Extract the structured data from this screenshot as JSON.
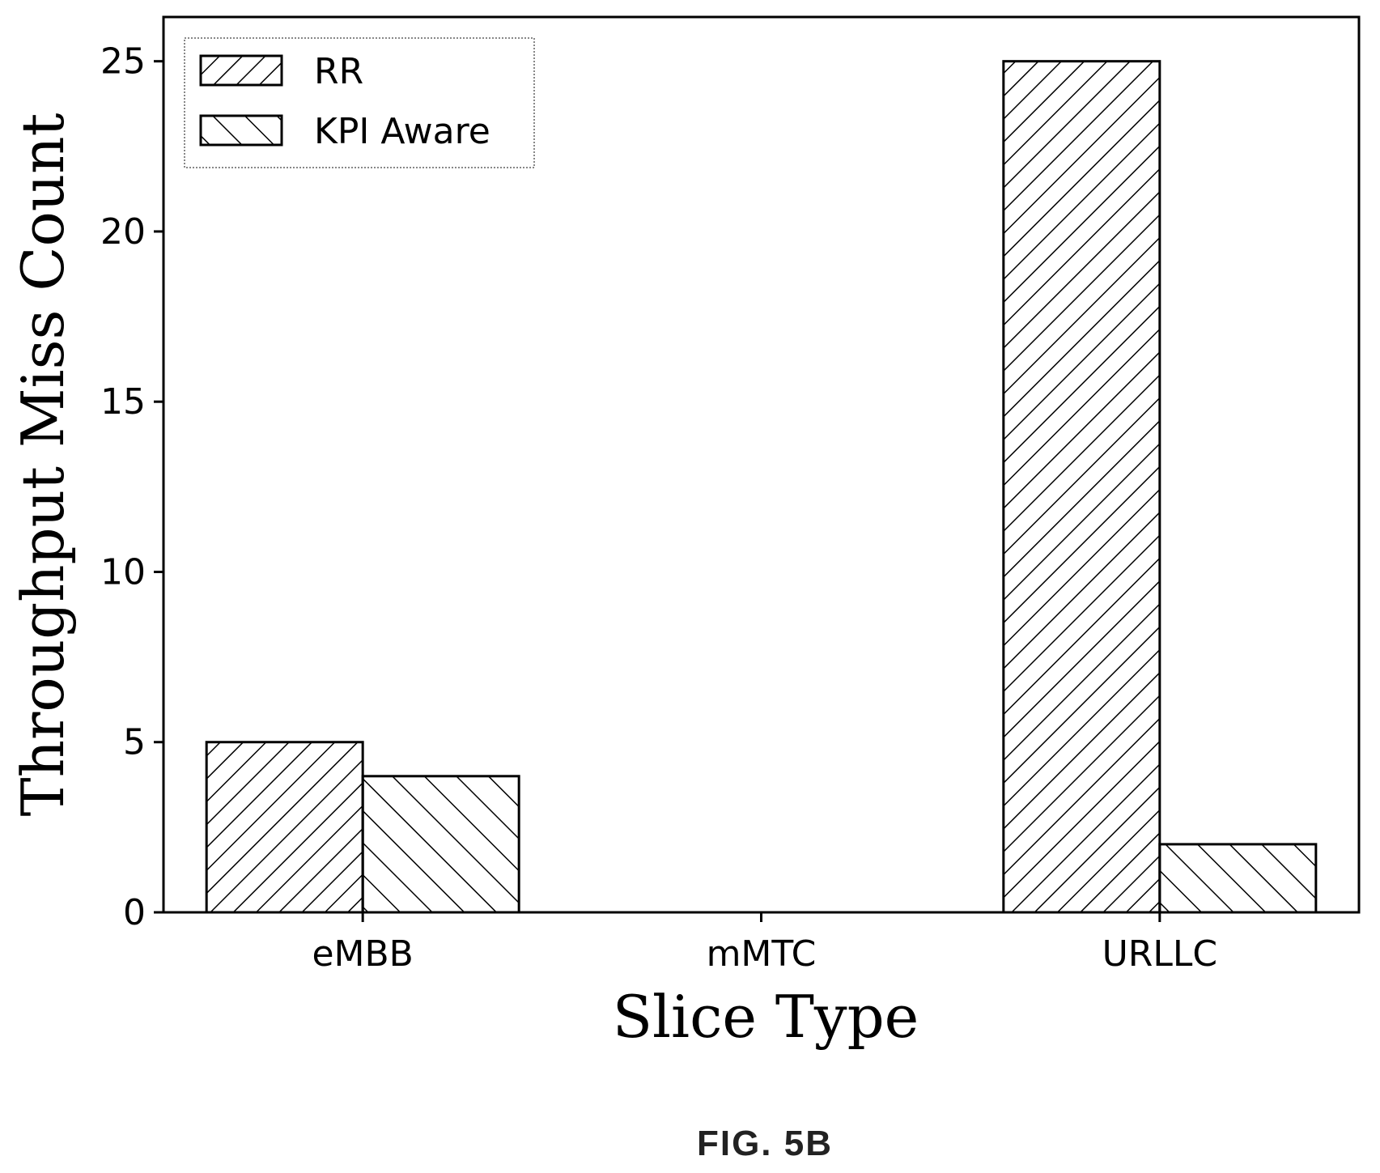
{
  "chart_data": {
    "type": "bar",
    "xlabel": "Slice Type",
    "ylabel": "Throughput Miss Count",
    "categories": [
      "eMBB",
      "mMTC",
      "URLLC"
    ],
    "series": [
      {
        "name": "RR",
        "values": [
          5,
          0,
          25
        ],
        "hatch": "forward-diagonal"
      },
      {
        "name": "KPI Aware",
        "values": [
          4,
          0,
          2
        ],
        "hatch": "backward-diagonal"
      }
    ],
    "ylim": [
      0,
      26.3
    ],
    "yticks": [
      0,
      5,
      10,
      15,
      20,
      25
    ],
    "legend_position": "top-left",
    "grid": false
  },
  "caption": "FIG. 5B"
}
